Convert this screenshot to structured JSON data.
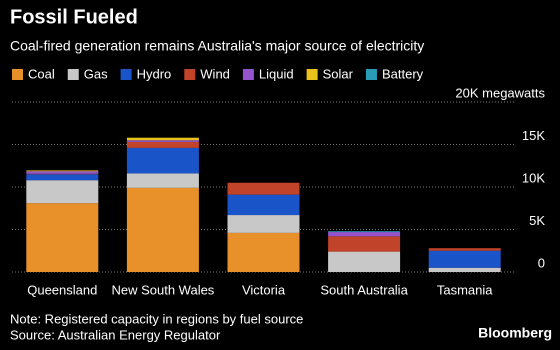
{
  "chart_data": {
    "type": "stacked_bar",
    "title": "Fossil Fueled",
    "subtitle": "Coal-fired generation remains Australia's major source of electricity",
    "categories": [
      "Queensland",
      "New South Wales",
      "Victoria",
      "South Australia",
      "Tasmania"
    ],
    "series": [
      {
        "name": "Coal",
        "color": "#e8912b",
        "values": [
          8100,
          9900,
          4600,
          0,
          0
        ]
      },
      {
        "name": "Gas",
        "color": "#c8c8c8",
        "values": [
          2700,
          1700,
          2100,
          2400,
          500
        ]
      },
      {
        "name": "Hydro",
        "color": "#1a54c9",
        "values": [
          700,
          3000,
          2400,
          0,
          2000
        ]
      },
      {
        "name": "Wind",
        "color": "#c0432a",
        "values": [
          50,
          700,
          1400,
          1800,
          300
        ]
      },
      {
        "name": "Liquid",
        "color": "#9354cc",
        "values": [
          300,
          200,
          0,
          500,
          0
        ]
      },
      {
        "name": "Solar",
        "color": "#e8c21a",
        "values": [
          100,
          300,
          0,
          0,
          0
        ]
      },
      {
        "name": "Battery",
        "color": "#2a9bb5",
        "values": [
          0,
          0,
          0,
          100,
          0
        ]
      }
    ],
    "ylim": [
      0,
      20000
    ],
    "yticks": [
      0,
      {
        "value": 5000,
        "label": "5K"
      },
      {
        "value": 10000,
        "label": "10K"
      },
      {
        "value": 15000,
        "label": "15K"
      },
      {
        "value": 20000,
        "label": "20K megawatts"
      }
    ],
    "grid": true,
    "note": "Note: Registered capacity in regions by fuel source",
    "source": "Source: Australian Energy Regulator",
    "brand": "Bloomberg"
  }
}
